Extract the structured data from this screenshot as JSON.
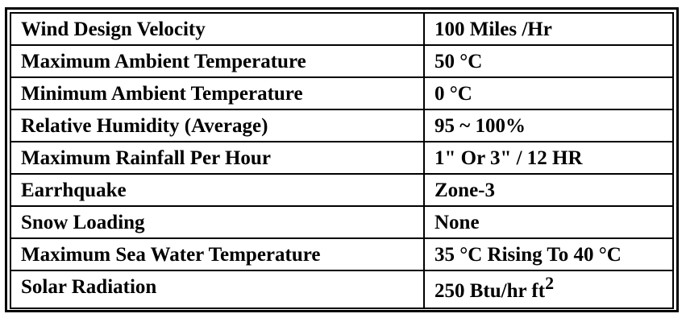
{
  "table": {
    "rows": [
      {
        "parameter": "Wind Design Velocity",
        "value": "100 Miles /Hr"
      },
      {
        "parameter": "Maximum Ambient Temperature",
        "value": "50 °C"
      },
      {
        "parameter": "Minimum Ambient Temperature",
        "value": "0 °C"
      },
      {
        "parameter": "Relative Humidity (Average)",
        "value": "95 ~ 100%"
      },
      {
        "parameter": "Maximum Rainfall Per Hour",
        "value": "1\" Or  3\" / 12 HR"
      },
      {
        "parameter": "Earrhquake",
        "value": "Zone-3"
      },
      {
        "parameter": "Snow Loading",
        "value": "None"
      },
      {
        "parameter": "Maximum Sea Water Temperature",
        "value": "35 °C Rising To 40 °C"
      },
      {
        "parameter": "Solar Radiation",
        "value": "250 Btu/hr ft",
        "value_superscript": "2"
      }
    ]
  }
}
